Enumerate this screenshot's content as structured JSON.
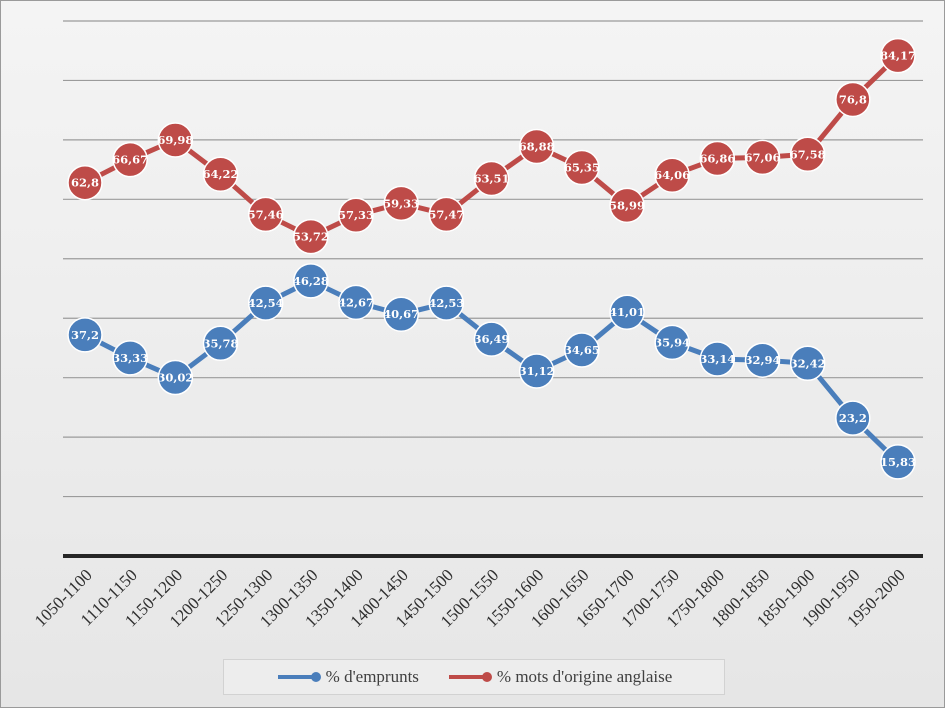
{
  "chart_data": {
    "type": "line",
    "title": "",
    "xlabel": "",
    "ylabel": "",
    "ylim": [
      0,
      90
    ],
    "grid": true,
    "legend_position": "bottom",
    "categories": [
      "1050-1100",
      "1110-1150",
      "1150-1200",
      "1200-1250",
      "1250-1300",
      "1300-1350",
      "1350-1400",
      "1400-1450",
      "1450-1500",
      "1500-1550",
      "1550-1600",
      "1600-1650",
      "1650-1700",
      "1700-1750",
      "1750-1800",
      "1800-1850",
      "1850-1900",
      "1900-1950",
      "1950-2000"
    ],
    "series": [
      {
        "name": "% d'emprunts",
        "color": "#4a7ebb",
        "values": [
          37.2,
          33.33,
          30.02,
          35.78,
          42.54,
          46.28,
          42.67,
          40.67,
          42.53,
          36.49,
          31.12,
          34.65,
          41.01,
          35.94,
          33.14,
          32.94,
          32.42,
          23.2,
          15.83
        ],
        "labels": [
          "37,2",
          "33,33",
          "30,02",
          "35,78",
          "42,54",
          "46,28",
          "42,67",
          "40,67",
          "42,53",
          "36,49",
          "31,12",
          "34,65",
          "41,01",
          "35,94",
          "33,14",
          "32,94",
          "32,42",
          "23,2",
          "15,83"
        ]
      },
      {
        "name": "% mots d'origine anglaise",
        "color": "#be4b48",
        "values": [
          62.8,
          66.67,
          69.98,
          64.22,
          57.46,
          53.72,
          57.33,
          59.33,
          57.47,
          63.51,
          68.88,
          65.35,
          58.99,
          64.06,
          66.86,
          67.06,
          67.58,
          76.8,
          84.17
        ],
        "labels": [
          "62,8",
          "66,67",
          "69,98",
          "64,22",
          "57,46",
          "53,72",
          "57,33",
          "59,33",
          "57,47",
          "63,51",
          "68,88",
          "65,35",
          "58,99",
          "64,06",
          "66,86",
          "67,06",
          "67,58",
          "76,8",
          "84,17"
        ]
      }
    ]
  }
}
